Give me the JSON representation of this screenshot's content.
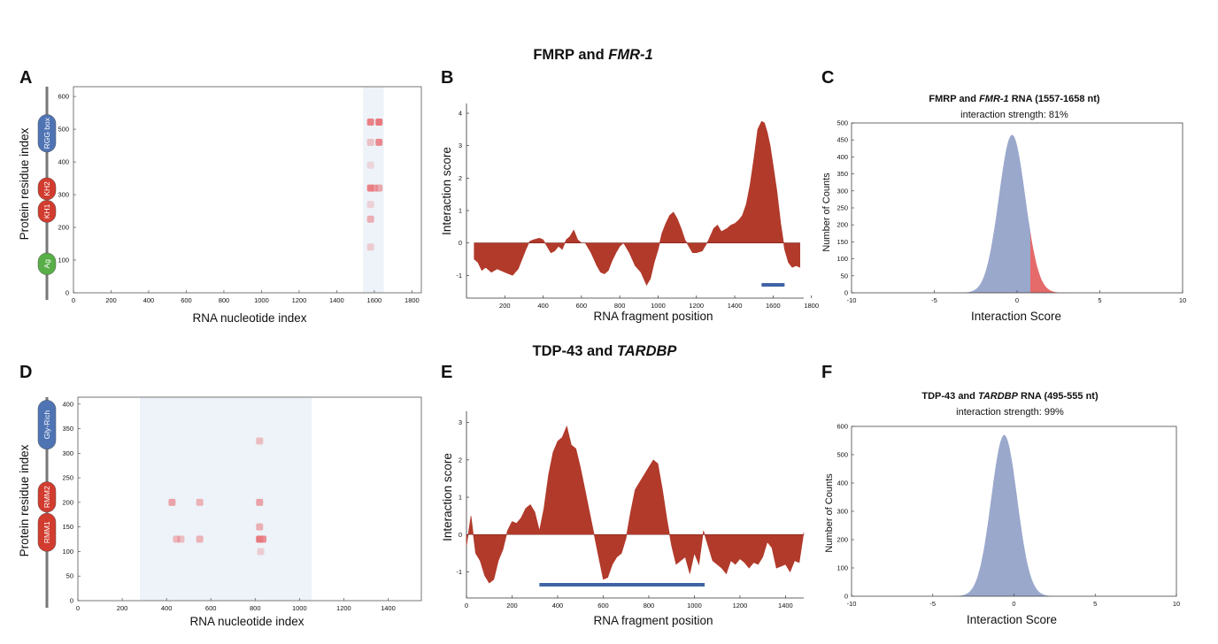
{
  "colors": {
    "score_fill": "#b13a2b",
    "highlight_bar": "#3f63a6",
    "hist_main": "#9aa8cc",
    "hist_tail": "#e56a6a",
    "heatmap_bg": "#edf3f8",
    "heatmap_spot": "#e8797f",
    "domain_blue": "#4f74b4",
    "domain_red": "#d13c2f",
    "domain_green": "#58ae47",
    "axis": "#333333"
  },
  "rows": [
    {
      "title_plain": "FMRP and ",
      "title_italic": "FMR-1",
      "panels": {
        "heatmap": {
          "label": "A",
          "xlabel": "RNA nucleotide index",
          "ylabel": "Protein residue index",
          "domains": [
            {
              "name": "RGG box",
              "color_key": "domain_blue",
              "start": 430,
              "end": 545,
              "icon": "rgg-box-domain-icon"
            },
            {
              "name": "KH2",
              "color_key": "domain_red",
              "start": 284,
              "end": 352,
              "icon": "kh2-domain-icon"
            },
            {
              "name": "KH1",
              "color_key": "domain_red",
              "start": 215,
              "end": 283,
              "icon": "kh1-domain-icon"
            },
            {
              "name": "Ag",
              "color_key": "domain_green",
              "start": 55,
              "end": 122,
              "icon": "ag-domain-icon"
            }
          ]
        },
        "profile": {
          "label": "B",
          "xlabel": "RNA fragment position",
          "ylabel": "Interaction score"
        },
        "histogram": {
          "label": "C",
          "header_prefix": "FMRP and ",
          "header_italic": "FMR-1",
          "header_suffix": " RNA (1557-1658 nt)",
          "subheader": "interaction strength: 81%",
          "xlabel": "Interaction Score",
          "ylabel": "Number of Counts"
        }
      }
    },
    {
      "title_plain": "TDP-43 and ",
      "title_italic": "TARDBP",
      "panels": {
        "heatmap": {
          "label": "D",
          "xlabel": "RNA nucleotide index",
          "ylabel": "Protein residue index",
          "domains": [
            {
              "name": "Gly-Rich",
              "color_key": "domain_blue",
              "start": 308,
              "end": 408,
              "icon": "gly-rich-domain-icon"
            },
            {
              "name": "RMM2",
              "color_key": "domain_red",
              "start": 180,
              "end": 242,
              "icon": "rrm2-domain-icon"
            },
            {
              "name": "RMM1",
              "color_key": "domain_red",
              "start": 100,
              "end": 178,
              "icon": "rrm1-domain-icon"
            }
          ]
        },
        "profile": {
          "label": "E",
          "xlabel": "RNA fragment position",
          "ylabel": "Interaction score"
        },
        "histogram": {
          "label": "F",
          "header_prefix": "TDP-43 and ",
          "header_italic": "TARDBP",
          "header_suffix": " RNA (495-555 nt)",
          "subheader": "interaction strength: 99%",
          "xlabel": "Interaction Score",
          "ylabel": "Number of Counts"
        }
      }
    }
  ],
  "chart_data": [
    {
      "id": "A",
      "type": "heatmap",
      "xlabel": "RNA nucleotide index",
      "ylabel": "Protein residue index",
      "xlim": [
        0,
        1850
      ],
      "ylim": [
        0,
        630
      ],
      "xticks": [
        0,
        200,
        400,
        600,
        800,
        1000,
        1200,
        1400,
        1600,
        1800
      ],
      "yticks": [
        0,
        100,
        200,
        300,
        400,
        500,
        600
      ],
      "region": [
        1540,
        1650
      ],
      "spots": [
        {
          "x": 1580,
          "y": 522,
          "i": 0.9
        },
        {
          "x": 1625,
          "y": 522,
          "i": 1.0
        },
        {
          "x": 1580,
          "y": 460,
          "i": 0.3
        },
        {
          "x": 1625,
          "y": 460,
          "i": 0.85
        },
        {
          "x": 1580,
          "y": 320,
          "i": 0.9
        },
        {
          "x": 1600,
          "y": 320,
          "i": 0.6
        },
        {
          "x": 1625,
          "y": 320,
          "i": 0.55
        },
        {
          "x": 1580,
          "y": 225,
          "i": 0.5
        },
        {
          "x": 1580,
          "y": 140,
          "i": 0.2
        },
        {
          "x": 1580,
          "y": 270,
          "i": 0.15
        },
        {
          "x": 1580,
          "y": 390,
          "i": 0.12
        }
      ]
    },
    {
      "id": "B",
      "type": "area",
      "xlabel": "RNA fragment position",
      "ylabel": "Interaction score",
      "xlim": [
        0,
        1760
      ],
      "ylim": [
        -1.7,
        4.3
      ],
      "xticks": [
        200,
        400,
        600,
        800,
        1000,
        1200,
        1400,
        1600,
        1800
      ],
      "yticks": [
        -1,
        0,
        1,
        2,
        3,
        4
      ],
      "highlight": [
        1540,
        1660
      ],
      "x": [
        40,
        60,
        80,
        100,
        130,
        160,
        200,
        240,
        270,
        290,
        310,
        330,
        350,
        380,
        400,
        420,
        440,
        460,
        480,
        500,
        520,
        540,
        560,
        580,
        600,
        620,
        650,
        680,
        700,
        720,
        740,
        760,
        780,
        800,
        820,
        850,
        880,
        910,
        940,
        960,
        980,
        1000,
        1020,
        1040,
        1060,
        1080,
        1100,
        1120,
        1140,
        1160,
        1180,
        1200,
        1230,
        1260,
        1290,
        1310,
        1330,
        1360,
        1380,
        1400,
        1420,
        1440,
        1460,
        1480,
        1500,
        1520,
        1540,
        1555,
        1570,
        1585,
        1600,
        1620,
        1640,
        1660,
        1680,
        1700,
        1720,
        1740
      ],
      "y": [
        -0.5,
        -0.6,
        -0.85,
        -0.75,
        -0.9,
        -0.8,
        -0.9,
        -1.0,
        -0.8,
        -0.5,
        -0.2,
        0.05,
        0.1,
        0.15,
        0.1,
        -0.1,
        -0.3,
        -0.25,
        -0.1,
        -0.2,
        0.1,
        0.2,
        0.4,
        0.1,
        0.0,
        0.0,
        -0.3,
        -0.7,
        -0.9,
        -0.95,
        -0.85,
        -0.55,
        -0.3,
        -0.1,
        0.0,
        -0.3,
        -0.7,
        -0.9,
        -1.3,
        -1.1,
        -0.6,
        -0.2,
        0.3,
        0.6,
        0.85,
        0.95,
        0.75,
        0.45,
        0.1,
        -0.1,
        -0.3,
        -0.3,
        -0.25,
        0.05,
        0.45,
        0.55,
        0.35,
        0.45,
        0.55,
        0.6,
        0.7,
        0.85,
        1.2,
        1.8,
        2.6,
        3.5,
        3.75,
        3.7,
        3.4,
        3.0,
        2.4,
        1.6,
        0.6,
        -0.2,
        -0.6,
        -0.75,
        -0.7,
        -0.75
      ]
    },
    {
      "id": "C",
      "type": "area",
      "title": "FMRP and FMR-1 RNA (1557-1658 nt)",
      "subtitle": "interaction strength: 81%",
      "xlabel": "Interaction Score",
      "ylabel": "Number of Counts",
      "xlim": [
        -10,
        10
      ],
      "ylim": [
        0,
        500
      ],
      "xticks": [
        -10,
        -5,
        0,
        5,
        10
      ],
      "yticks": [
        0,
        50,
        100,
        150,
        200,
        250,
        300,
        350,
        400,
        450,
        500
      ],
      "mean": -0.3,
      "sd": 0.8,
      "peak": 465,
      "threshold": 0.8
    },
    {
      "id": "D",
      "type": "heatmap",
      "xlabel": "RNA nucleotide index",
      "ylabel": "Protein residue index",
      "xlim": [
        0,
        1550
      ],
      "ylim": [
        0,
        414
      ],
      "xticks": [
        0,
        200,
        400,
        600,
        800,
        1000,
        1200,
        1400
      ],
      "yticks": [
        0,
        50,
        100,
        150,
        200,
        250,
        300,
        350,
        400
      ],
      "region": [
        280,
        1055
      ],
      "spots": [
        {
          "x": 425,
          "y": 200,
          "i": 0.6
        },
        {
          "x": 550,
          "y": 200,
          "i": 0.45
        },
        {
          "x": 820,
          "y": 200,
          "i": 0.6
        },
        {
          "x": 445,
          "y": 125,
          "i": 0.4
        },
        {
          "x": 465,
          "y": 125,
          "i": 0.35
        },
        {
          "x": 550,
          "y": 125,
          "i": 0.45
        },
        {
          "x": 820,
          "y": 125,
          "i": 1.0
        },
        {
          "x": 835,
          "y": 125,
          "i": 0.8
        },
        {
          "x": 820,
          "y": 150,
          "i": 0.5
        },
        {
          "x": 820,
          "y": 325,
          "i": 0.35
        },
        {
          "x": 825,
          "y": 100,
          "i": 0.2
        }
      ]
    },
    {
      "id": "E",
      "type": "area",
      "xlabel": "RNA fragment position",
      "ylabel": "Interaction score",
      "xlim": [
        0,
        1480
      ],
      "ylim": [
        -1.7,
        3.3
      ],
      "xticks": [
        0,
        200,
        400,
        600,
        800,
        1000,
        1200,
        1400
      ],
      "yticks": [
        -1,
        0,
        1,
        2,
        3
      ],
      "highlight": [
        320,
        1045
      ],
      "x": [
        0,
        20,
        40,
        60,
        80,
        100,
        120,
        140,
        160,
        180,
        200,
        220,
        240,
        260,
        280,
        300,
        320,
        340,
        360,
        380,
        400,
        420,
        440,
        460,
        480,
        500,
        520,
        540,
        560,
        580,
        600,
        620,
        640,
        660,
        680,
        700,
        720,
        740,
        760,
        780,
        800,
        820,
        840,
        860,
        880,
        900,
        920,
        940,
        960,
        980,
        1000,
        1020,
        1040,
        1060,
        1080,
        1100,
        1120,
        1140,
        1160,
        1180,
        1200,
        1220,
        1240,
        1260,
        1280,
        1300,
        1320,
        1340,
        1360,
        1380,
        1400,
        1420,
        1440,
        1460,
        1480
      ],
      "y": [
        -0.3,
        0.5,
        -0.5,
        -0.7,
        -1.1,
        -1.3,
        -1.2,
        -0.7,
        -0.4,
        0.1,
        0.35,
        0.3,
        0.45,
        0.7,
        0.8,
        0.6,
        0.1,
        0.7,
        1.6,
        2.2,
        2.5,
        2.6,
        2.9,
        2.4,
        2.3,
        1.8,
        1.2,
        0.6,
        0.0,
        -0.6,
        -1.2,
        -1.15,
        -0.8,
        -0.6,
        -0.5,
        -0.1,
        0.6,
        1.2,
        1.4,
        1.6,
        1.8,
        2.0,
        1.9,
        1.2,
        0.4,
        -0.3,
        -0.8,
        -0.7,
        -0.6,
        -1.05,
        -0.5,
        -0.8,
        0.1,
        -0.3,
        -0.7,
        -0.8,
        -0.9,
        -1.05,
        -0.7,
        -0.8,
        -0.65,
        -0.75,
        -0.9,
        -0.75,
        -0.8,
        -0.6,
        -0.2,
        -0.35,
        -0.9,
        -0.85,
        -0.8,
        -1.0,
        -0.7,
        -0.75,
        0.05
      ]
    },
    {
      "id": "F",
      "type": "area",
      "title": "TDP-43 and TARDBP RNA (495-555 nt)",
      "subtitle": "interaction strength: 99%",
      "xlabel": "Interaction Score",
      "ylabel": "Number of Counts",
      "xlim": [
        -10,
        10
      ],
      "ylim": [
        0,
        600
      ],
      "xticks": [
        -10,
        -5,
        0,
        5,
        10
      ],
      "yticks": [
        0,
        100,
        200,
        300,
        400,
        500,
        600
      ],
      "mean": -0.6,
      "sd": 0.8,
      "peak": 570,
      "threshold": 10
    }
  ]
}
